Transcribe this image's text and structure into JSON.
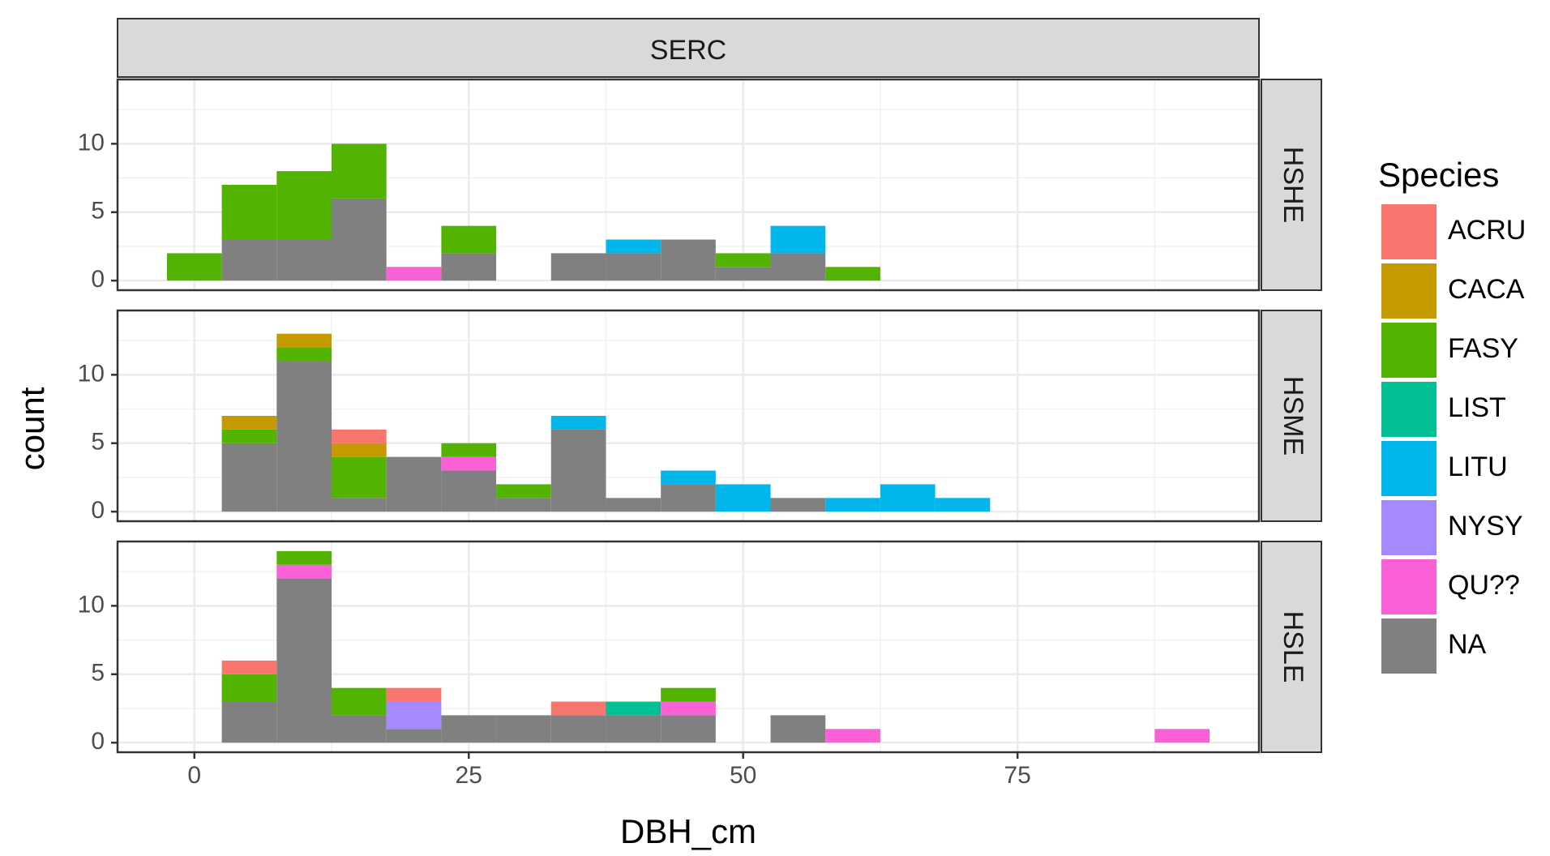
{
  "chart_data": {
    "type": "bar",
    "facet_column": "SERC",
    "xlabel": "DBH_cm",
    "ylabel": "count",
    "xlim": [
      -7,
      97
    ],
    "ylim": [
      -0.7,
      14.7
    ],
    "xticks": [
      0,
      25,
      50,
      75
    ],
    "yticks": [
      0,
      5,
      10
    ],
    "bin_width": 5,
    "grid": true,
    "legend": {
      "title": "Species",
      "position": "right",
      "entries": [
        {
          "key": "ACRU",
          "label": "ACRU",
          "color": "#F8766D"
        },
        {
          "key": "CACA",
          "label": "CACA",
          "color": "#C49A00"
        },
        {
          "key": "FASY",
          "label": "FASY",
          "color": "#53B400"
        },
        {
          "key": "LIST",
          "label": "LIST",
          "color": "#00C094"
        },
        {
          "key": "LITU",
          "label": "LITU",
          "color": "#00B6EB"
        },
        {
          "key": "NYSY",
          "label": "NYSY",
          "color": "#A58AFF"
        },
        {
          "key": "QU??",
          "label": "QU??",
          "color": "#FB61D7"
        },
        {
          "key": "NA",
          "label": "NA",
          "color": "#808080"
        }
      ]
    },
    "stack_order": [
      "NA",
      "QU??",
      "NYSY",
      "LITU",
      "LIST",
      "FASY",
      "CACA",
      "ACRU"
    ],
    "panels": [
      {
        "label": "HSHE",
        "bins": [
          {
            "x": 0,
            "counts": {
              "FASY": 2
            }
          },
          {
            "x": 5,
            "counts": {
              "NA": 3,
              "FASY": 4
            }
          },
          {
            "x": 10,
            "counts": {
              "NA": 3,
              "FASY": 5
            }
          },
          {
            "x": 15,
            "counts": {
              "NA": 6,
              "FASY": 4
            }
          },
          {
            "x": 20,
            "counts": {
              "QU??": 1
            }
          },
          {
            "x": 25,
            "counts": {
              "NA": 2,
              "FASY": 2
            }
          },
          {
            "x": 35,
            "counts": {
              "NA": 2
            }
          },
          {
            "x": 40,
            "counts": {
              "NA": 2,
              "LITU": 1
            }
          },
          {
            "x": 45,
            "counts": {
              "NA": 3
            }
          },
          {
            "x": 50,
            "counts": {
              "NA": 1,
              "FASY": 1
            }
          },
          {
            "x": 55,
            "counts": {
              "NA": 2,
              "LITU": 2
            }
          },
          {
            "x": 60,
            "counts": {
              "FASY": 1
            }
          }
        ]
      },
      {
        "label": "HSME",
        "bins": [
          {
            "x": 5,
            "counts": {
              "NA": 5,
              "FASY": 1,
              "CACA": 1
            }
          },
          {
            "x": 10,
            "counts": {
              "NA": 11,
              "FASY": 1,
              "CACA": 1
            }
          },
          {
            "x": 15,
            "counts": {
              "NA": 1,
              "FASY": 3,
              "CACA": 1,
              "ACRU": 1
            }
          },
          {
            "x": 20,
            "counts": {
              "NA": 4
            }
          },
          {
            "x": 25,
            "counts": {
              "NA": 3,
              "QU??": 1,
              "FASY": 1
            }
          },
          {
            "x": 30,
            "counts": {
              "NA": 1,
              "FASY": 1
            }
          },
          {
            "x": 35,
            "counts": {
              "NA": 6,
              "LITU": 1
            }
          },
          {
            "x": 40,
            "counts": {
              "NA": 1
            }
          },
          {
            "x": 45,
            "counts": {
              "NA": 2,
              "LITU": 1
            }
          },
          {
            "x": 50,
            "counts": {
              "LITU": 2
            }
          },
          {
            "x": 55,
            "counts": {
              "NA": 1
            }
          },
          {
            "x": 60,
            "counts": {
              "LITU": 1
            }
          },
          {
            "x": 65,
            "counts": {
              "LITU": 2
            }
          },
          {
            "x": 70,
            "counts": {
              "LITU": 1
            }
          }
        ]
      },
      {
        "label": "HSLE",
        "bins": [
          {
            "x": 5,
            "counts": {
              "NA": 3,
              "FASY": 2,
              "ACRU": 1
            }
          },
          {
            "x": 10,
            "counts": {
              "NA": 12,
              "QU??": 1,
              "FASY": 1
            }
          },
          {
            "x": 15,
            "counts": {
              "NA": 2,
              "FASY": 2
            }
          },
          {
            "x": 20,
            "counts": {
              "NA": 1,
              "NYSY": 2,
              "ACRU": 1
            }
          },
          {
            "x": 25,
            "counts": {
              "NA": 2
            }
          },
          {
            "x": 30,
            "counts": {
              "NA": 2
            }
          },
          {
            "x": 35,
            "counts": {
              "NA": 2,
              "ACRU": 1
            }
          },
          {
            "x": 40,
            "counts": {
              "NA": 2,
              "LIST": 1
            }
          },
          {
            "x": 45,
            "counts": {
              "NA": 2,
              "QU??": 1,
              "FASY": 1
            }
          },
          {
            "x": 55,
            "counts": {
              "NA": 2
            }
          },
          {
            "x": 60,
            "counts": {
              "QU??": 1
            }
          },
          {
            "x": 90,
            "counts": {
              "QU??": 1
            }
          }
        ]
      }
    ]
  }
}
